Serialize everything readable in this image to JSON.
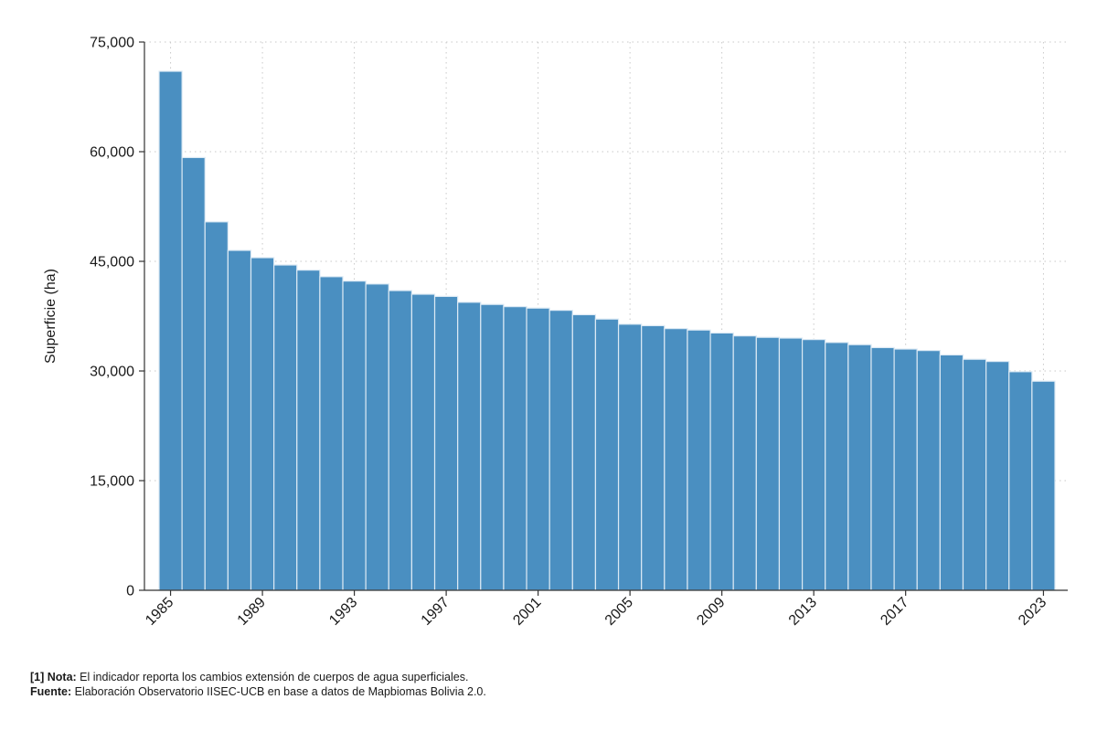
{
  "chart_data": {
    "type": "bar",
    "title": "",
    "xlabel": "",
    "ylabel": "Superficie (ha)",
    "ylim": [
      0,
      75000
    ],
    "yticks": [
      0,
      15000,
      30000,
      45000,
      60000,
      75000
    ],
    "ytick_labels": [
      "0",
      "15,000",
      "30,000",
      "45,000",
      "60,000",
      "75,000"
    ],
    "xtick_labels": [
      "1985",
      "1989",
      "1993",
      "1997",
      "2001",
      "2005",
      "2009",
      "2013",
      "2017",
      "2023"
    ],
    "grid": true,
    "bar_color": "#4a8fc1",
    "categories": [
      "1985",
      "1986",
      "1987",
      "1988",
      "1989",
      "1990",
      "1991",
      "1992",
      "1993",
      "1994",
      "1995",
      "1996",
      "1997",
      "1998",
      "1999",
      "2000",
      "2001",
      "2002",
      "2003",
      "2004",
      "2005",
      "2006",
      "2007",
      "2008",
      "2009",
      "2010",
      "2011",
      "2012",
      "2013",
      "2014",
      "2015",
      "2016",
      "2017",
      "2018",
      "2019",
      "2020",
      "2021",
      "2022",
      "2023"
    ],
    "values": [
      71000,
      59200,
      50400,
      46500,
      45500,
      44500,
      43800,
      42900,
      42300,
      41900,
      41000,
      40500,
      40200,
      39400,
      39100,
      38800,
      38600,
      38300,
      37700,
      37100,
      36400,
      36200,
      35800,
      35600,
      35200,
      34800,
      34600,
      34500,
      34300,
      33900,
      33600,
      33200,
      33000,
      32800,
      32200,
      31600,
      31300,
      29900,
      28600
    ]
  },
  "notes": {
    "nota_label": "[1] Nota:",
    "nota_text": " El indicador reporta los cambios extensión de cuerpos de agua superficiales.",
    "fuente_label": "Fuente:",
    "fuente_text": " Elaboración Observatorio IISEC-UCB en base a datos de Mapbiomas Bolivia 2.0."
  }
}
